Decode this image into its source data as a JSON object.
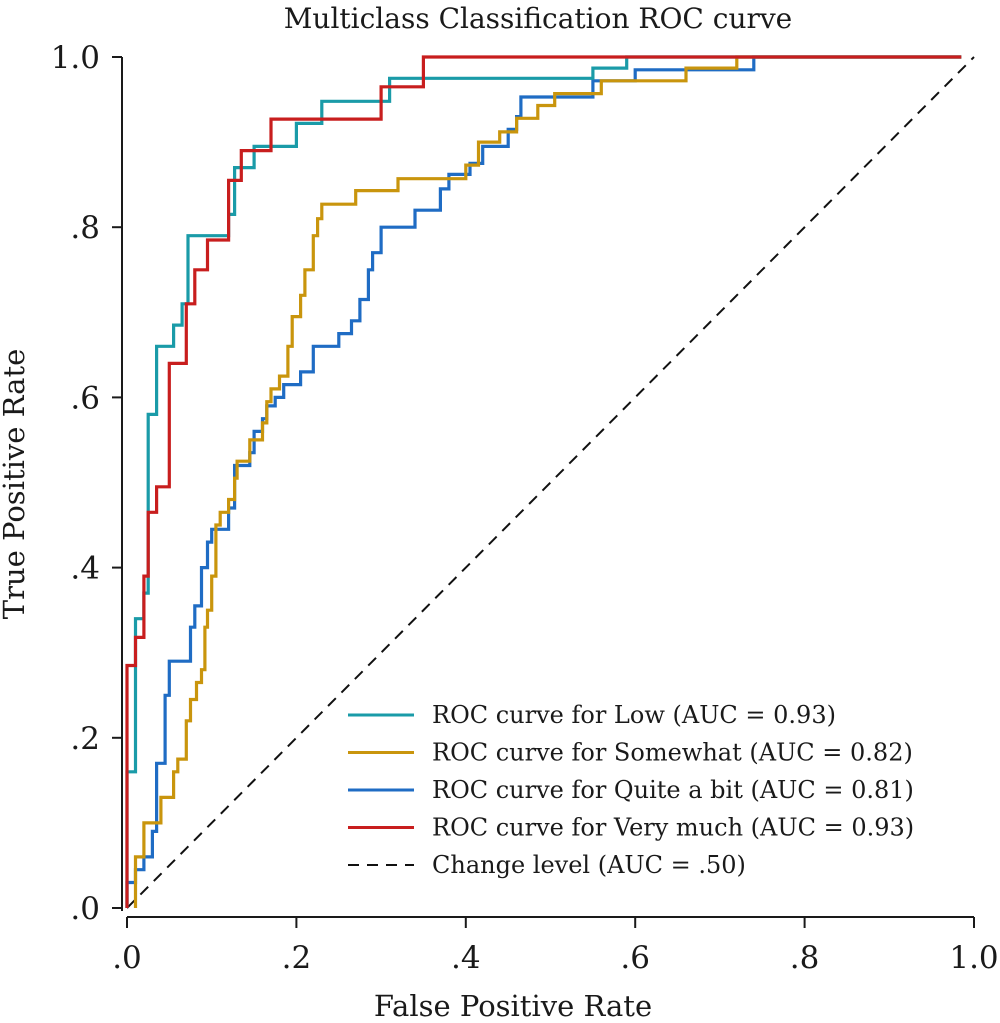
{
  "chart_data": {
    "type": "line",
    "title": "Multiclass Classification ROC curve",
    "xlabel": "False Positive Rate",
    "ylabel": "True Positive Rate",
    "xlim": [
      0,
      1
    ],
    "ylim": [
      0,
      1
    ],
    "x_ticks": [
      {
        "value": 0.0,
        "label": ".0"
      },
      {
        "value": 0.2,
        "label": ".2"
      },
      {
        "value": 0.4,
        "label": ".4"
      },
      {
        "value": 0.6,
        "label": ".6"
      },
      {
        "value": 0.8,
        "label": ".8"
      },
      {
        "value": 1.0,
        "label": "1.0"
      }
    ],
    "y_ticks": [
      {
        "value": 0.0,
        "label": ".0"
      },
      {
        "value": 0.2,
        "label": ".2"
      },
      {
        "value": 0.4,
        "label": ".4"
      },
      {
        "value": 0.6,
        "label": ".6"
      },
      {
        "value": 0.8,
        "label": ".8"
      },
      {
        "value": 1.0,
        "label": "1.0"
      }
    ],
    "grid": false,
    "legend_position": "bottom-right",
    "series": [
      {
        "name": "ROC curve for Low (AUC = 0.93)",
        "color": "#1a9ba8",
        "dash": false,
        "points": [
          [
            0,
            0
          ],
          [
            0,
            0.16
          ],
          [
            0.01,
            0.16
          ],
          [
            0.01,
            0.34
          ],
          [
            0.02,
            0.34
          ],
          [
            0.02,
            0.37
          ],
          [
            0.025,
            0.37
          ],
          [
            0.025,
            0.58
          ],
          [
            0.035,
            0.58
          ],
          [
            0.035,
            0.66
          ],
          [
            0.055,
            0.66
          ],
          [
            0.055,
            0.685
          ],
          [
            0.065,
            0.685
          ],
          [
            0.065,
            0.71
          ],
          [
            0.072,
            0.71
          ],
          [
            0.072,
            0.79
          ],
          [
            0.12,
            0.79
          ],
          [
            0.12,
            0.815
          ],
          [
            0.127,
            0.815
          ],
          [
            0.127,
            0.87
          ],
          [
            0.15,
            0.87
          ],
          [
            0.15,
            0.895
          ],
          [
            0.2,
            0.895
          ],
          [
            0.2,
            0.922
          ],
          [
            0.23,
            0.922
          ],
          [
            0.23,
            0.948
          ],
          [
            0.31,
            0.948
          ],
          [
            0.31,
            0.975
          ],
          [
            0.55,
            0.975
          ],
          [
            0.55,
            0.987
          ],
          [
            0.59,
            0.987
          ],
          [
            0.59,
            1.0
          ],
          [
            0.985,
            1.0
          ]
        ]
      },
      {
        "name": "ROC curve for Somewhat (AUC = 0.82)",
        "color": "#c9950d",
        "dash": false,
        "points": [
          [
            0.01,
            0
          ],
          [
            0.01,
            0.06
          ],
          [
            0.02,
            0.06
          ],
          [
            0.02,
            0.1
          ],
          [
            0.04,
            0.1
          ],
          [
            0.04,
            0.13
          ],
          [
            0.055,
            0.13
          ],
          [
            0.055,
            0.16
          ],
          [
            0.06,
            0.16
          ],
          [
            0.06,
            0.175
          ],
          [
            0.07,
            0.175
          ],
          [
            0.07,
            0.22
          ],
          [
            0.075,
            0.22
          ],
          [
            0.075,
            0.245
          ],
          [
            0.082,
            0.245
          ],
          [
            0.082,
            0.265
          ],
          [
            0.088,
            0.265
          ],
          [
            0.088,
            0.28
          ],
          [
            0.092,
            0.28
          ],
          [
            0.092,
            0.33
          ],
          [
            0.095,
            0.33
          ],
          [
            0.095,
            0.35
          ],
          [
            0.1,
            0.35
          ],
          [
            0.1,
            0.39
          ],
          [
            0.105,
            0.39
          ],
          [
            0.105,
            0.45
          ],
          [
            0.11,
            0.45
          ],
          [
            0.11,
            0.465
          ],
          [
            0.12,
            0.465
          ],
          [
            0.12,
            0.48
          ],
          [
            0.127,
            0.48
          ],
          [
            0.127,
            0.505
          ],
          [
            0.13,
            0.505
          ],
          [
            0.13,
            0.525
          ],
          [
            0.145,
            0.525
          ],
          [
            0.145,
            0.55
          ],
          [
            0.16,
            0.55
          ],
          [
            0.16,
            0.57
          ],
          [
            0.165,
            0.57
          ],
          [
            0.165,
            0.595
          ],
          [
            0.17,
            0.595
          ],
          [
            0.17,
            0.61
          ],
          [
            0.18,
            0.61
          ],
          [
            0.18,
            0.625
          ],
          [
            0.19,
            0.625
          ],
          [
            0.19,
            0.66
          ],
          [
            0.195,
            0.66
          ],
          [
            0.195,
            0.695
          ],
          [
            0.205,
            0.695
          ],
          [
            0.205,
            0.72
          ],
          [
            0.21,
            0.72
          ],
          [
            0.21,
            0.75
          ],
          [
            0.22,
            0.75
          ],
          [
            0.22,
            0.79
          ],
          [
            0.225,
            0.79
          ],
          [
            0.225,
            0.81
          ],
          [
            0.23,
            0.81
          ],
          [
            0.23,
            0.827
          ],
          [
            0.27,
            0.827
          ],
          [
            0.27,
            0.843
          ],
          [
            0.32,
            0.843
          ],
          [
            0.32,
            0.857
          ],
          [
            0.4,
            0.857
          ],
          [
            0.4,
            0.873
          ],
          [
            0.415,
            0.873
          ],
          [
            0.415,
            0.9
          ],
          [
            0.44,
            0.9
          ],
          [
            0.44,
            0.912
          ],
          [
            0.46,
            0.912
          ],
          [
            0.46,
            0.928
          ],
          [
            0.485,
            0.928
          ],
          [
            0.485,
            0.943
          ],
          [
            0.505,
            0.943
          ],
          [
            0.505,
            0.957
          ],
          [
            0.56,
            0.957
          ],
          [
            0.56,
            0.972
          ],
          [
            0.66,
            0.972
          ],
          [
            0.66,
            0.987
          ],
          [
            0.72,
            0.987
          ],
          [
            0.72,
            1.0
          ],
          [
            0.985,
            1.0
          ]
        ]
      },
      {
        "name": "ROC curve for Quite a bit (AUC = 0.81)",
        "color": "#1f6cc4",
        "dash": false,
        "points": [
          [
            0,
            0
          ],
          [
            0,
            0.03
          ],
          [
            0.01,
            0.03
          ],
          [
            0.01,
            0.045
          ],
          [
            0.02,
            0.045
          ],
          [
            0.02,
            0.06
          ],
          [
            0.03,
            0.06
          ],
          [
            0.03,
            0.09
          ],
          [
            0.035,
            0.09
          ],
          [
            0.035,
            0.17
          ],
          [
            0.045,
            0.17
          ],
          [
            0.045,
            0.25
          ],
          [
            0.05,
            0.25
          ],
          [
            0.05,
            0.29
          ],
          [
            0.075,
            0.29
          ],
          [
            0.075,
            0.33
          ],
          [
            0.08,
            0.33
          ],
          [
            0.08,
            0.355
          ],
          [
            0.088,
            0.355
          ],
          [
            0.088,
            0.4
          ],
          [
            0.095,
            0.4
          ],
          [
            0.095,
            0.43
          ],
          [
            0.1,
            0.43
          ],
          [
            0.1,
            0.445
          ],
          [
            0.12,
            0.445
          ],
          [
            0.12,
            0.47
          ],
          [
            0.127,
            0.47
          ],
          [
            0.127,
            0.52
          ],
          [
            0.145,
            0.52
          ],
          [
            0.145,
            0.535
          ],
          [
            0.15,
            0.535
          ],
          [
            0.15,
            0.56
          ],
          [
            0.16,
            0.56
          ],
          [
            0.16,
            0.575
          ],
          [
            0.165,
            0.575
          ],
          [
            0.165,
            0.59
          ],
          [
            0.175,
            0.59
          ],
          [
            0.175,
            0.6
          ],
          [
            0.185,
            0.6
          ],
          [
            0.185,
            0.615
          ],
          [
            0.205,
            0.615
          ],
          [
            0.205,
            0.63
          ],
          [
            0.22,
            0.63
          ],
          [
            0.22,
            0.66
          ],
          [
            0.25,
            0.66
          ],
          [
            0.25,
            0.675
          ],
          [
            0.265,
            0.675
          ],
          [
            0.265,
            0.69
          ],
          [
            0.275,
            0.69
          ],
          [
            0.275,
            0.715
          ],
          [
            0.285,
            0.715
          ],
          [
            0.285,
            0.75
          ],
          [
            0.29,
            0.75
          ],
          [
            0.29,
            0.77
          ],
          [
            0.3,
            0.77
          ],
          [
            0.3,
            0.8
          ],
          [
            0.34,
            0.8
          ],
          [
            0.34,
            0.82
          ],
          [
            0.37,
            0.82
          ],
          [
            0.37,
            0.845
          ],
          [
            0.38,
            0.845
          ],
          [
            0.38,
            0.862
          ],
          [
            0.405,
            0.862
          ],
          [
            0.405,
            0.875
          ],
          [
            0.42,
            0.875
          ],
          [
            0.42,
            0.895
          ],
          [
            0.45,
            0.895
          ],
          [
            0.45,
            0.915
          ],
          [
            0.46,
            0.915
          ],
          [
            0.46,
            0.93
          ],
          [
            0.465,
            0.93
          ],
          [
            0.465,
            0.953
          ],
          [
            0.55,
            0.953
          ],
          [
            0.55,
            0.972
          ],
          [
            0.6,
            0.972
          ],
          [
            0.6,
            0.985
          ],
          [
            0.74,
            0.985
          ],
          [
            0.74,
            1.0
          ],
          [
            0.985,
            1.0
          ]
        ]
      },
      {
        "name": "ROC curve for Very much (AUC = 0.93)",
        "color": "#c81e1e",
        "dash": false,
        "points": [
          [
            0,
            0
          ],
          [
            0,
            0.285
          ],
          [
            0.01,
            0.285
          ],
          [
            0.01,
            0.318
          ],
          [
            0.02,
            0.318
          ],
          [
            0.02,
            0.39
          ],
          [
            0.025,
            0.39
          ],
          [
            0.025,
            0.465
          ],
          [
            0.035,
            0.465
          ],
          [
            0.035,
            0.495
          ],
          [
            0.05,
            0.495
          ],
          [
            0.05,
            0.64
          ],
          [
            0.07,
            0.64
          ],
          [
            0.07,
            0.71
          ],
          [
            0.08,
            0.71
          ],
          [
            0.08,
            0.75
          ],
          [
            0.095,
            0.75
          ],
          [
            0.095,
            0.785
          ],
          [
            0.12,
            0.785
          ],
          [
            0.12,
            0.855
          ],
          [
            0.135,
            0.855
          ],
          [
            0.135,
            0.89
          ],
          [
            0.17,
            0.89
          ],
          [
            0.17,
            0.927
          ],
          [
            0.3,
            0.927
          ],
          [
            0.3,
            0.965
          ],
          [
            0.35,
            0.965
          ],
          [
            0.35,
            1.0
          ],
          [
            0.985,
            1.0
          ]
        ]
      },
      {
        "name": "Change level (AUC = .50)",
        "color": "#111111",
        "dash": true,
        "points": [
          [
            0,
            0
          ],
          [
            1,
            1
          ]
        ]
      }
    ]
  }
}
